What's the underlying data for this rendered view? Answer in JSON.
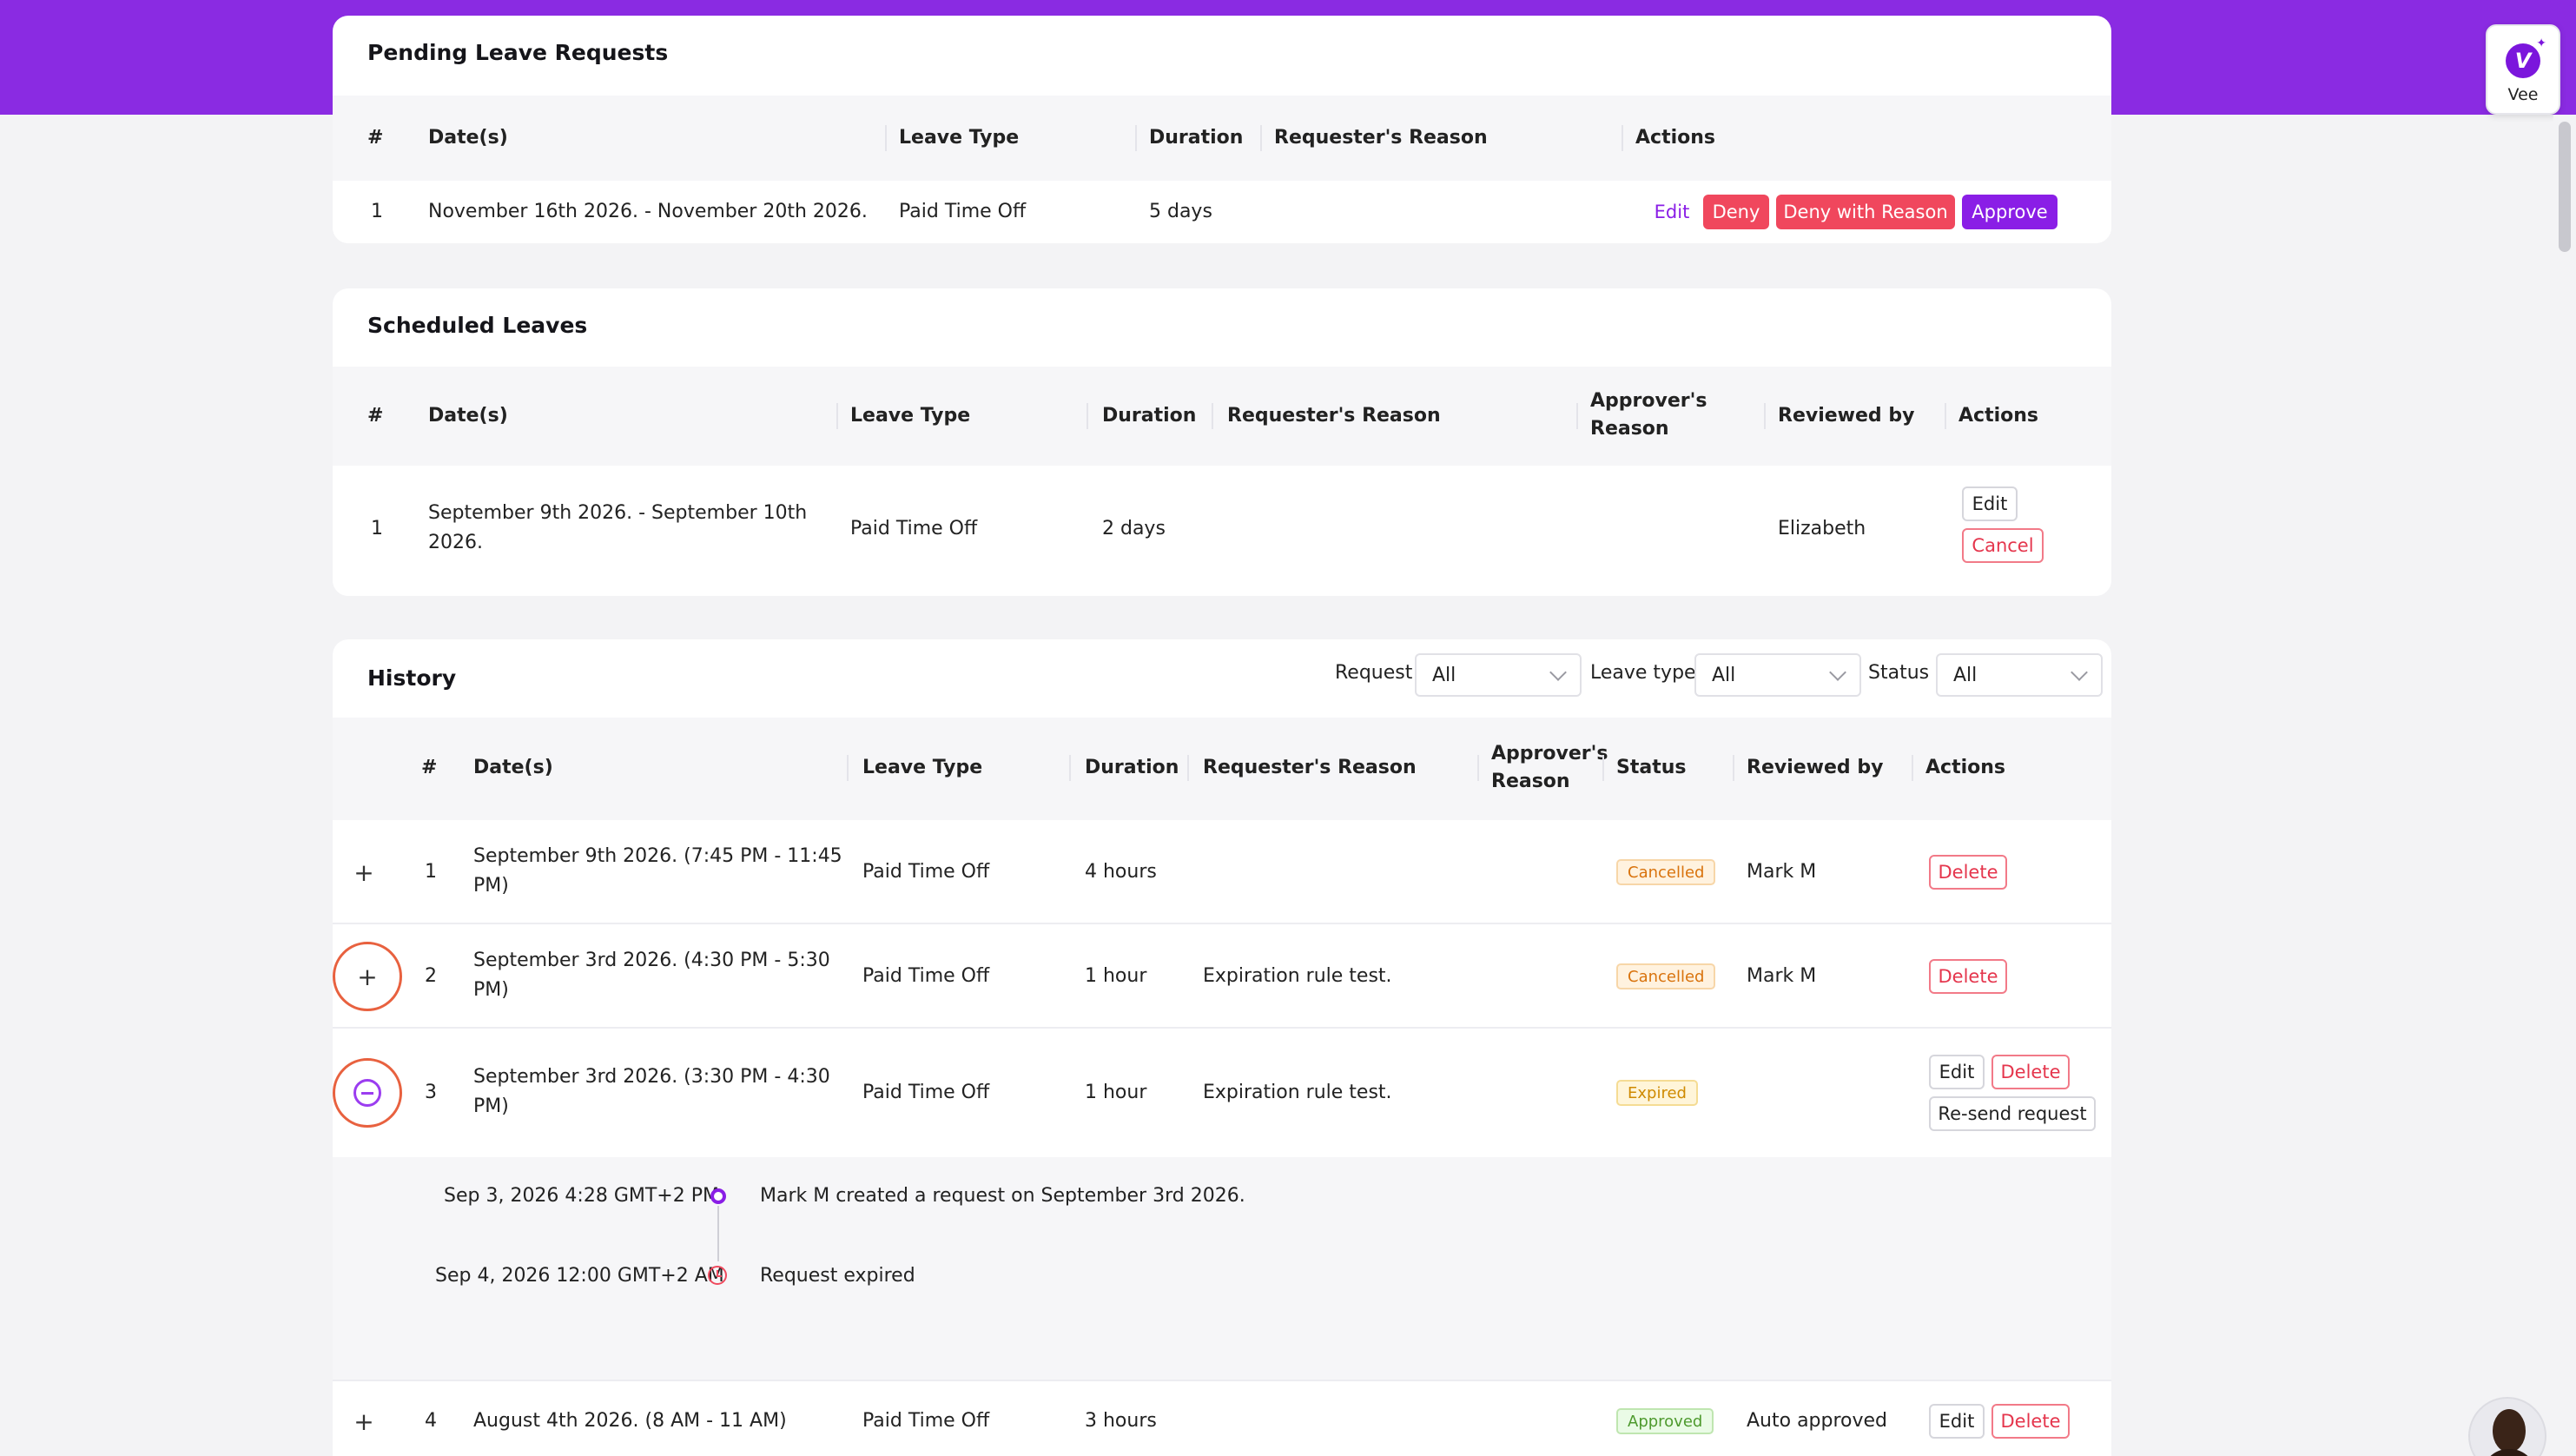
{
  "pending": {
    "title": "Pending Leave Requests",
    "headers": [
      "#",
      "Date(s)",
      "Leave Type",
      "Duration",
      "Requester's Reason",
      "Actions"
    ],
    "rows": [
      {
        "num": "1",
        "dates": "November 16th 2026. - November 20th 2026.",
        "leave_type": "Paid Time Off",
        "duration": "5 days",
        "reason": "",
        "actions": {
          "edit": "Edit",
          "deny": "Deny",
          "deny_reason": "Deny with Reason",
          "approve": "Approve"
        }
      }
    ]
  },
  "scheduled": {
    "title": "Scheduled Leaves",
    "headers": {
      "num": "#",
      "dates": "Date(s)",
      "leave_type": "Leave Type",
      "duration": "Duration",
      "req_reason": "Requester's Reason",
      "appr_reason_1": "Approver's",
      "appr_reason_2": "Reason",
      "reviewed_by": "Reviewed by",
      "actions": "Actions"
    },
    "rows": [
      {
        "num": "1",
        "dates_1": "September 9th 2026. - September 10th",
        "dates_2": "2026.",
        "leave_type": "Paid Time Off",
        "duration": "2 days",
        "reviewed_by": "Elizabeth",
        "actions": {
          "edit": "Edit",
          "cancel": "Cancel"
        }
      }
    ]
  },
  "history": {
    "title": "History",
    "filters": {
      "request_label": "Request",
      "request_value": "All",
      "leave_type_label": "Leave type",
      "leave_type_value": "All",
      "status_label": "Status",
      "status_value": "All"
    },
    "headers": {
      "num": "#",
      "dates": "Date(s)",
      "leave_type": "Leave Type",
      "duration": "Duration",
      "req_reason": "Requester's Reason",
      "appr_reason_1": "Approver's",
      "appr_reason_2": "Reason",
      "status": "Status",
      "reviewed_by": "Reviewed by",
      "actions": "Actions"
    },
    "rows": [
      {
        "toggle": "+",
        "num": "1",
        "dates_1": "September 9th 2026.  (7:45 PM - 11:45",
        "dates_2": "PM)",
        "leave_type": "Paid Time Off",
        "duration": "4 hours",
        "req_reason": "",
        "status": "Cancelled",
        "reviewed_by": "Mark M",
        "delete": "Delete"
      },
      {
        "toggle": "+",
        "num": "2",
        "dates_1": "September 3rd 2026.  (4:30 PM - 5:30",
        "dates_2": "PM)",
        "leave_type": "Paid Time Off",
        "duration": "1 hour",
        "req_reason": "Expiration rule test.",
        "status": "Cancelled",
        "reviewed_by": "Mark M",
        "delete": "Delete"
      },
      {
        "num": "3",
        "dates_1": "September 3rd 2026.  (3:30 PM - 4:30",
        "dates_2": "PM)",
        "leave_type": "Paid Time Off",
        "duration": "1 hour",
        "req_reason": "Expiration rule test.",
        "status": "Expired",
        "edit": "Edit",
        "delete": "Delete",
        "resend": "Re-send request"
      },
      {
        "toggle": "+",
        "num": "4",
        "dates_1": "August 4th 2026.  (8 AM - 11 AM)",
        "leave_type": "Paid Time Off",
        "duration": "3 hours",
        "status": "Approved",
        "reviewed_by": "Auto approved",
        "edit": "Edit",
        "delete": "Delete"
      }
    ],
    "timeline": [
      {
        "time": "Sep 3, 2026 4:28 GMT+2 PM",
        "text": "Mark M created a request on September 3rd 2026."
      },
      {
        "time": "Sep 4, 2026 12:00 GMT+2 AM",
        "text": "Request expired"
      }
    ]
  },
  "assistant": {
    "label": "Vee",
    "logo": "V"
  },
  "colors": {
    "accent": "#8a1ee6",
    "danger": "#f0475d",
    "band": "#8a2be2"
  }
}
